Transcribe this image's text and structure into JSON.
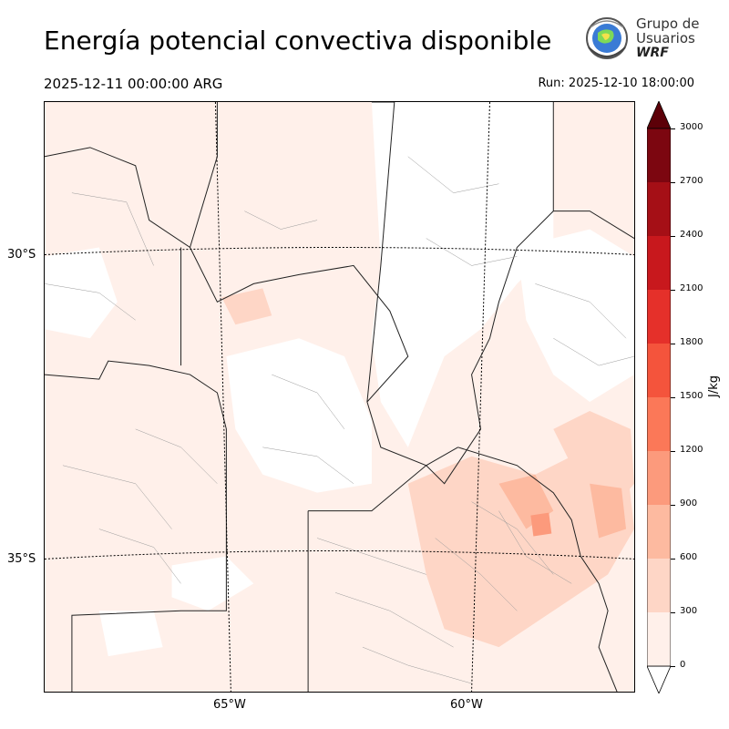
{
  "header": {
    "title": "Energía potencial convectiva disponible",
    "valid_time": "2025-12-11 00:00:00 ARG",
    "run_time": "Run: 2025-12-10 18:00:00"
  },
  "logo": {
    "line1": "Grupo de",
    "line2": "Usuarios",
    "line3": "WRF"
  },
  "map": {
    "lat_labels": [
      "30°S",
      "35°S"
    ],
    "lon_labels": [
      "65°W",
      "60°W"
    ]
  },
  "colorbar": {
    "unit": "J/kg",
    "ticks": [
      "0",
      "300",
      "600",
      "900",
      "1200",
      "1500",
      "1800",
      "2100",
      "2400",
      "2700",
      "3000"
    ],
    "colors": [
      "#fff0ea",
      "#fed6c6",
      "#fdbaa0",
      "#fc9a7c",
      "#fb7858",
      "#f4543c",
      "#e5302a",
      "#c8181d",
      "#a50f16",
      "#7c0610"
    ],
    "extend_color": "#5c0008"
  }
}
